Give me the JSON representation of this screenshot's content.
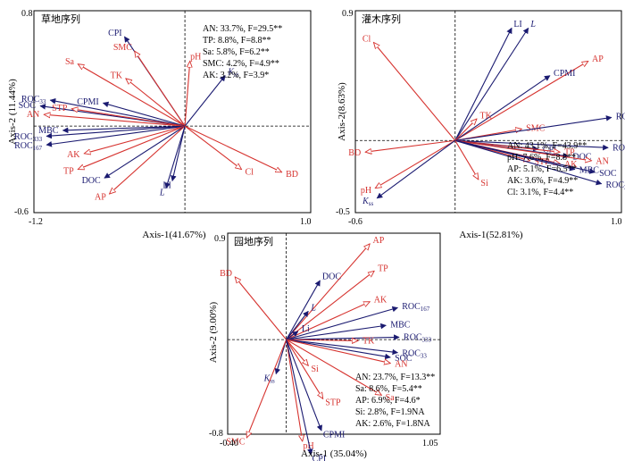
{
  "colors": {
    "soil": "#1a1a70",
    "env": "#d6332f"
  },
  "chart_data": [
    {
      "type": "biplot",
      "title": "草地序列",
      "xlabel": "Axis-1(41.67%)",
      "ylabel": "Axis-2 (11.44%)",
      "xlim": [
        -1.2,
        1.0
      ],
      "ylim": [
        -0.6,
        0.8
      ],
      "xticks": [
        "-1.2",
        "1.0"
      ],
      "yticks": [
        "0.8",
        "-0.6"
      ],
      "stats": [
        "AN: 33.7%, F=29.5**",
        "TP: 8.8%, F=8.8**",
        "Sa: 5.8%, F=6.2**",
        "SMC: 4.2%, F=4.9**",
        "AK: 3.2%, F=3.9*"
      ],
      "vectors": [
        {
          "label": "CPI",
          "x": -0.48,
          "y": 0.62,
          "group": "soil"
        },
        {
          "label": "SMC",
          "x": -0.4,
          "y": 0.52,
          "group": "env"
        },
        {
          "label": "Sa",
          "x": -0.85,
          "y": 0.43,
          "group": "env"
        },
        {
          "label": "TK",
          "x": -0.47,
          "y": 0.33,
          "group": "env"
        },
        {
          "label": "pH",
          "x": 0.04,
          "y": 0.45,
          "group": "env"
        },
        {
          "label": "K_ss",
          "x": 0.32,
          "y": 0.35,
          "group": "soil"
        },
        {
          "label": "CPMI",
          "x": -0.65,
          "y": 0.16,
          "group": "soil"
        },
        {
          "label": "ROC_33",
          "x": -1.07,
          "y": 0.18,
          "group": "soil"
        },
        {
          "label": "SOC",
          "x": -1.15,
          "y": 0.14,
          "group": "soil"
        },
        {
          "label": "STP",
          "x": -0.9,
          "y": 0.12,
          "group": "env"
        },
        {
          "label": "AN",
          "x": -1.12,
          "y": 0.08,
          "group": "env"
        },
        {
          "label": "MBC",
          "x": -0.97,
          "y": -0.03,
          "group": "soil"
        },
        {
          "label": "ROC_333",
          "x": -1.1,
          "y": -0.07,
          "group": "soil"
        },
        {
          "label": "ROC_167",
          "x": -1.1,
          "y": -0.13,
          "group": "soil"
        },
        {
          "label": "AK",
          "x": -0.8,
          "y": -0.19,
          "group": "env"
        },
        {
          "label": "TP",
          "x": -0.85,
          "y": -0.3,
          "group": "env"
        },
        {
          "label": "DOC",
          "x": -0.64,
          "y": -0.36,
          "group": "soil"
        },
        {
          "label": "AP",
          "x": -0.6,
          "y": -0.47,
          "group": "env"
        },
        {
          "label": "LI",
          "x": -0.1,
          "y": -0.38,
          "group": "soil"
        },
        {
          "label": "L",
          "x": -0.15,
          "y": -0.43,
          "group": "soil"
        },
        {
          "label": "Cl",
          "x": 0.45,
          "y": -0.3,
          "group": "env"
        },
        {
          "label": "BD",
          "x": 0.77,
          "y": -0.32,
          "group": "env"
        }
      ]
    },
    {
      "type": "biplot",
      "title": "灌木序列",
      "xlabel": "Axis-1(52.81%)",
      "ylabel": "Axis-2(8.63%)",
      "xlim": [
        -0.6,
        1.0
      ],
      "ylim": [
        -0.5,
        0.9
      ],
      "xticks": [
        "-0.6",
        "1.0"
      ],
      "yticks": [
        "0.9",
        "-0.5"
      ],
      "stats": [
        "AN: 43.1%, F=43.9**",
        "pH: 7.6%, F=8.8**",
        "AP: 5.1%, F=6.5**",
        "AK: 3.6%, F=4.9**",
        "Cl: 3.1%, F=4.4**"
      ],
      "vectors": [
        {
          "label": "LI",
          "x": 0.34,
          "y": 0.78,
          "group": "soil"
        },
        {
          "label": "L",
          "x": 0.44,
          "y": 0.78,
          "group": "soil"
        },
        {
          "label": "Cl",
          "x": -0.49,
          "y": 0.68,
          "group": "env"
        },
        {
          "label": "AP",
          "x": 0.8,
          "y": 0.55,
          "group": "env"
        },
        {
          "label": "CPMI",
          "x": 0.57,
          "y": 0.45,
          "group": "soil"
        },
        {
          "label": "TK",
          "x": 0.13,
          "y": 0.15,
          "group": "env"
        },
        {
          "label": "SMC",
          "x": 0.4,
          "y": 0.08,
          "group": "env"
        },
        {
          "label": "ROC_333",
          "x": 0.94,
          "y": 0.16,
          "group": "soil"
        },
        {
          "label": "ROC_167",
          "x": 0.92,
          "y": -0.05,
          "group": "soil"
        },
        {
          "label": "CPI",
          "x": 0.5,
          "y": -0.06,
          "group": "soil"
        },
        {
          "label": "TP",
          "x": 0.63,
          "y": -0.08,
          "group": "env"
        },
        {
          "label": "DOC",
          "x": 0.68,
          "y": -0.11,
          "group": "soil"
        },
        {
          "label": "AN",
          "x": 0.82,
          "y": -0.14,
          "group": "env"
        },
        {
          "label": "STP",
          "x": 0.45,
          "y": -0.14,
          "group": "env"
        },
        {
          "label": "AK",
          "x": 0.63,
          "y": -0.16,
          "group": "env"
        },
        {
          "label": "MBC",
          "x": 0.72,
          "y": -0.2,
          "group": "soil"
        },
        {
          "label": "SOC",
          "x": 0.84,
          "y": -0.22,
          "group": "soil"
        },
        {
          "label": "ROC_33",
          "x": 0.88,
          "y": -0.3,
          "group": "soil"
        },
        {
          "label": "BD",
          "x": -0.54,
          "y": -0.08,
          "group": "env"
        },
        {
          "label": "Si",
          "x": 0.14,
          "y": -0.27,
          "group": "env"
        },
        {
          "label": "pH",
          "x": -0.48,
          "y": -0.33,
          "group": "env"
        },
        {
          "label": "K_ss",
          "x": -0.47,
          "y": -0.4,
          "group": "soil"
        }
      ]
    },
    {
      "type": "biplot",
      "title": "园地序列",
      "xlabel": "Axis-1 (35.04%)",
      "ylabel": "Axis-2 (9.00%)",
      "xlim": [
        -0.4,
        1.05
      ],
      "ylim": [
        -0.8,
        0.9
      ],
      "xticks": [
        "-0.40",
        "1.05"
      ],
      "yticks": [
        "0.9",
        "-0.8"
      ],
      "stats": [
        "AN: 23.7%, F=13.3**",
        "Sa: 8.6%, F=5.4**",
        "AP: 6.9%, F=4.6*",
        "Si: 2.8%, F=1.9NA",
        "AK: 2.6%, F=1.8NA"
      ],
      "vectors": [
        {
          "label": "AP",
          "x": 0.57,
          "y": 0.81,
          "group": "env"
        },
        {
          "label": "TP",
          "x": 0.6,
          "y": 0.58,
          "group": "env"
        },
        {
          "label": "DOC",
          "x": 0.23,
          "y": 0.5,
          "group": "soil"
        },
        {
          "label": "BD",
          "x": -0.35,
          "y": 0.53,
          "group": "env"
        },
        {
          "label": "AK",
          "x": 0.57,
          "y": 0.32,
          "group": "env"
        },
        {
          "label": "ROC_167",
          "x": 0.76,
          "y": 0.27,
          "group": "soil"
        },
        {
          "label": "L",
          "x": 0.15,
          "y": 0.24,
          "group": "soil"
        },
        {
          "label": "MBC",
          "x": 0.68,
          "y": 0.12,
          "group": "soil"
        },
        {
          "label": "Li",
          "x": 0.08,
          "y": 0.07,
          "group": "soil"
        },
        {
          "label": "ROC_333",
          "x": 0.77,
          "y": 0.02,
          "group": "soil"
        },
        {
          "label": "TK",
          "x": 0.49,
          "y": -0.01,
          "group": "env"
        },
        {
          "label": "ROC_33",
          "x": 0.76,
          "y": -0.11,
          "group": "soil"
        },
        {
          "label": "SOC",
          "x": 0.71,
          "y": -0.15,
          "group": "soil"
        },
        {
          "label": "AN",
          "x": 0.71,
          "y": -0.2,
          "group": "env"
        },
        {
          "label": "K_ss",
          "x": -0.07,
          "y": -0.29,
          "group": "soil"
        },
        {
          "label": "Si",
          "x": 0.15,
          "y": -0.22,
          "group": "env"
        },
        {
          "label": "STP",
          "x": 0.25,
          "y": -0.5,
          "group": "env"
        },
        {
          "label": "Sa",
          "x": 0.65,
          "y": -0.47,
          "group": "env"
        },
        {
          "label": "SMC",
          "x": -0.27,
          "y": -0.83,
          "group": "env"
        },
        {
          "label": "CPMI",
          "x": 0.24,
          "y": -0.77,
          "group": "soil"
        },
        {
          "label": "pH",
          "x": 0.11,
          "y": -0.86,
          "group": "env"
        },
        {
          "label": "CPI",
          "x": 0.17,
          "y": -0.97,
          "group": "soil"
        }
      ]
    }
  ]
}
